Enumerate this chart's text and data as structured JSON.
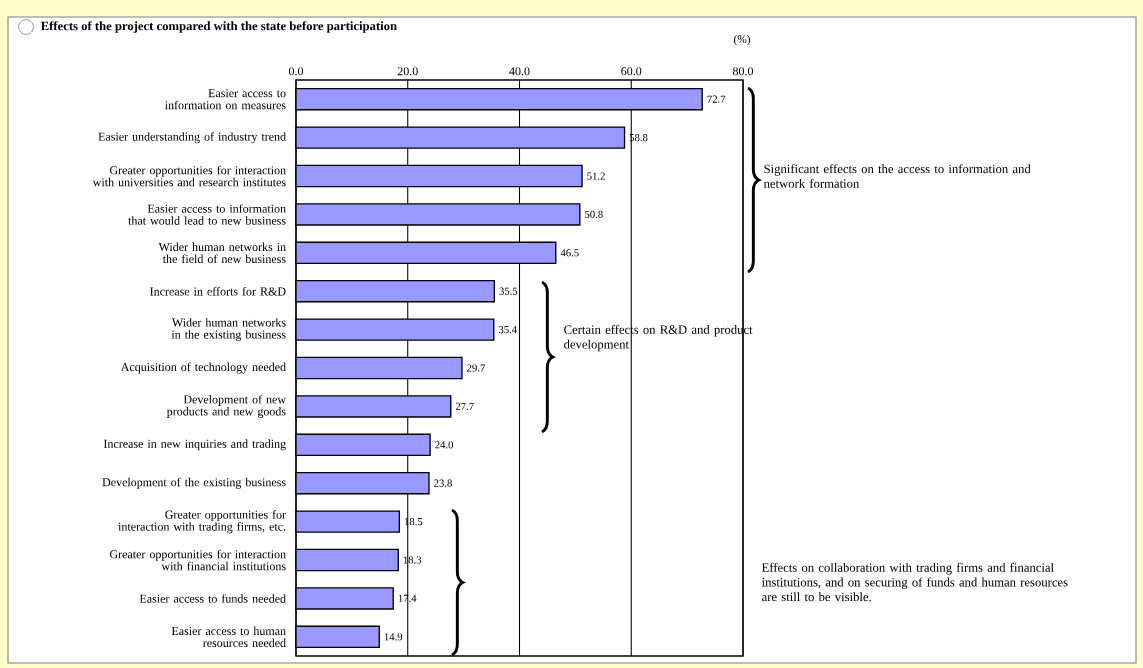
{
  "chart_data": {
    "type": "bar",
    "orientation": "horizontal",
    "title": "Effects of the project compared with the state before participation",
    "xlabel": "(%)",
    "categories": [
      "Easier access to information on measures",
      "Easier understanding of industry trend",
      "Greater opportunities for interaction with universities and research institutes",
      "Easier access to information that would lead to new business",
      "Wider human networks in the field of new business",
      "Increase in efforts for R&D",
      "Wider human networks in the existing business",
      "Acquisition of technology needed",
      "Development of new products and new goods",
      "Increase in new inquiries and trading",
      "Development of the existing business",
      "Greater opportunities for interaction with trading firms, etc.",
      "Greater opportunities for interaction with financial institutions",
      "Easier access to funds needed",
      "Easier access to human resources needed"
    ],
    "values": [
      72.7,
      58.8,
      51.2,
      50.8,
      46.5,
      35.5,
      35.4,
      29.7,
      27.7,
      24.0,
      23.8,
      18.5,
      18.3,
      17.4,
      14.9
    ],
    "color": "#9999ff",
    "xlim": [
      0,
      80
    ],
    "xticks": [
      {
        "value": 0,
        "label": "0.0"
      },
      {
        "value": 20,
        "label": "20.0"
      },
      {
        "value": 40,
        "label": "40.0"
      },
      {
        "value": 60,
        "label": "60.0"
      },
      {
        "value": 80,
        "label": "80.0"
      }
    ],
    "grid": "x",
    "value_labels": [
      "72.7",
      "58.8",
      "51.2",
      "50.8",
      "46.5",
      "35.5",
      "35.4",
      "29.7",
      "27.7",
      "24.0",
      "23.8",
      "18.5",
      "18.3",
      "17.4",
      "14.9"
    ],
    "annotations": [
      "Significant effects on the access to information and network formation",
      "Certain effects on R&D and product development",
      "Effects on collaboration with trading firms and financial institutions, and on securing of funds and human resources are still to be visible."
    ]
  }
}
